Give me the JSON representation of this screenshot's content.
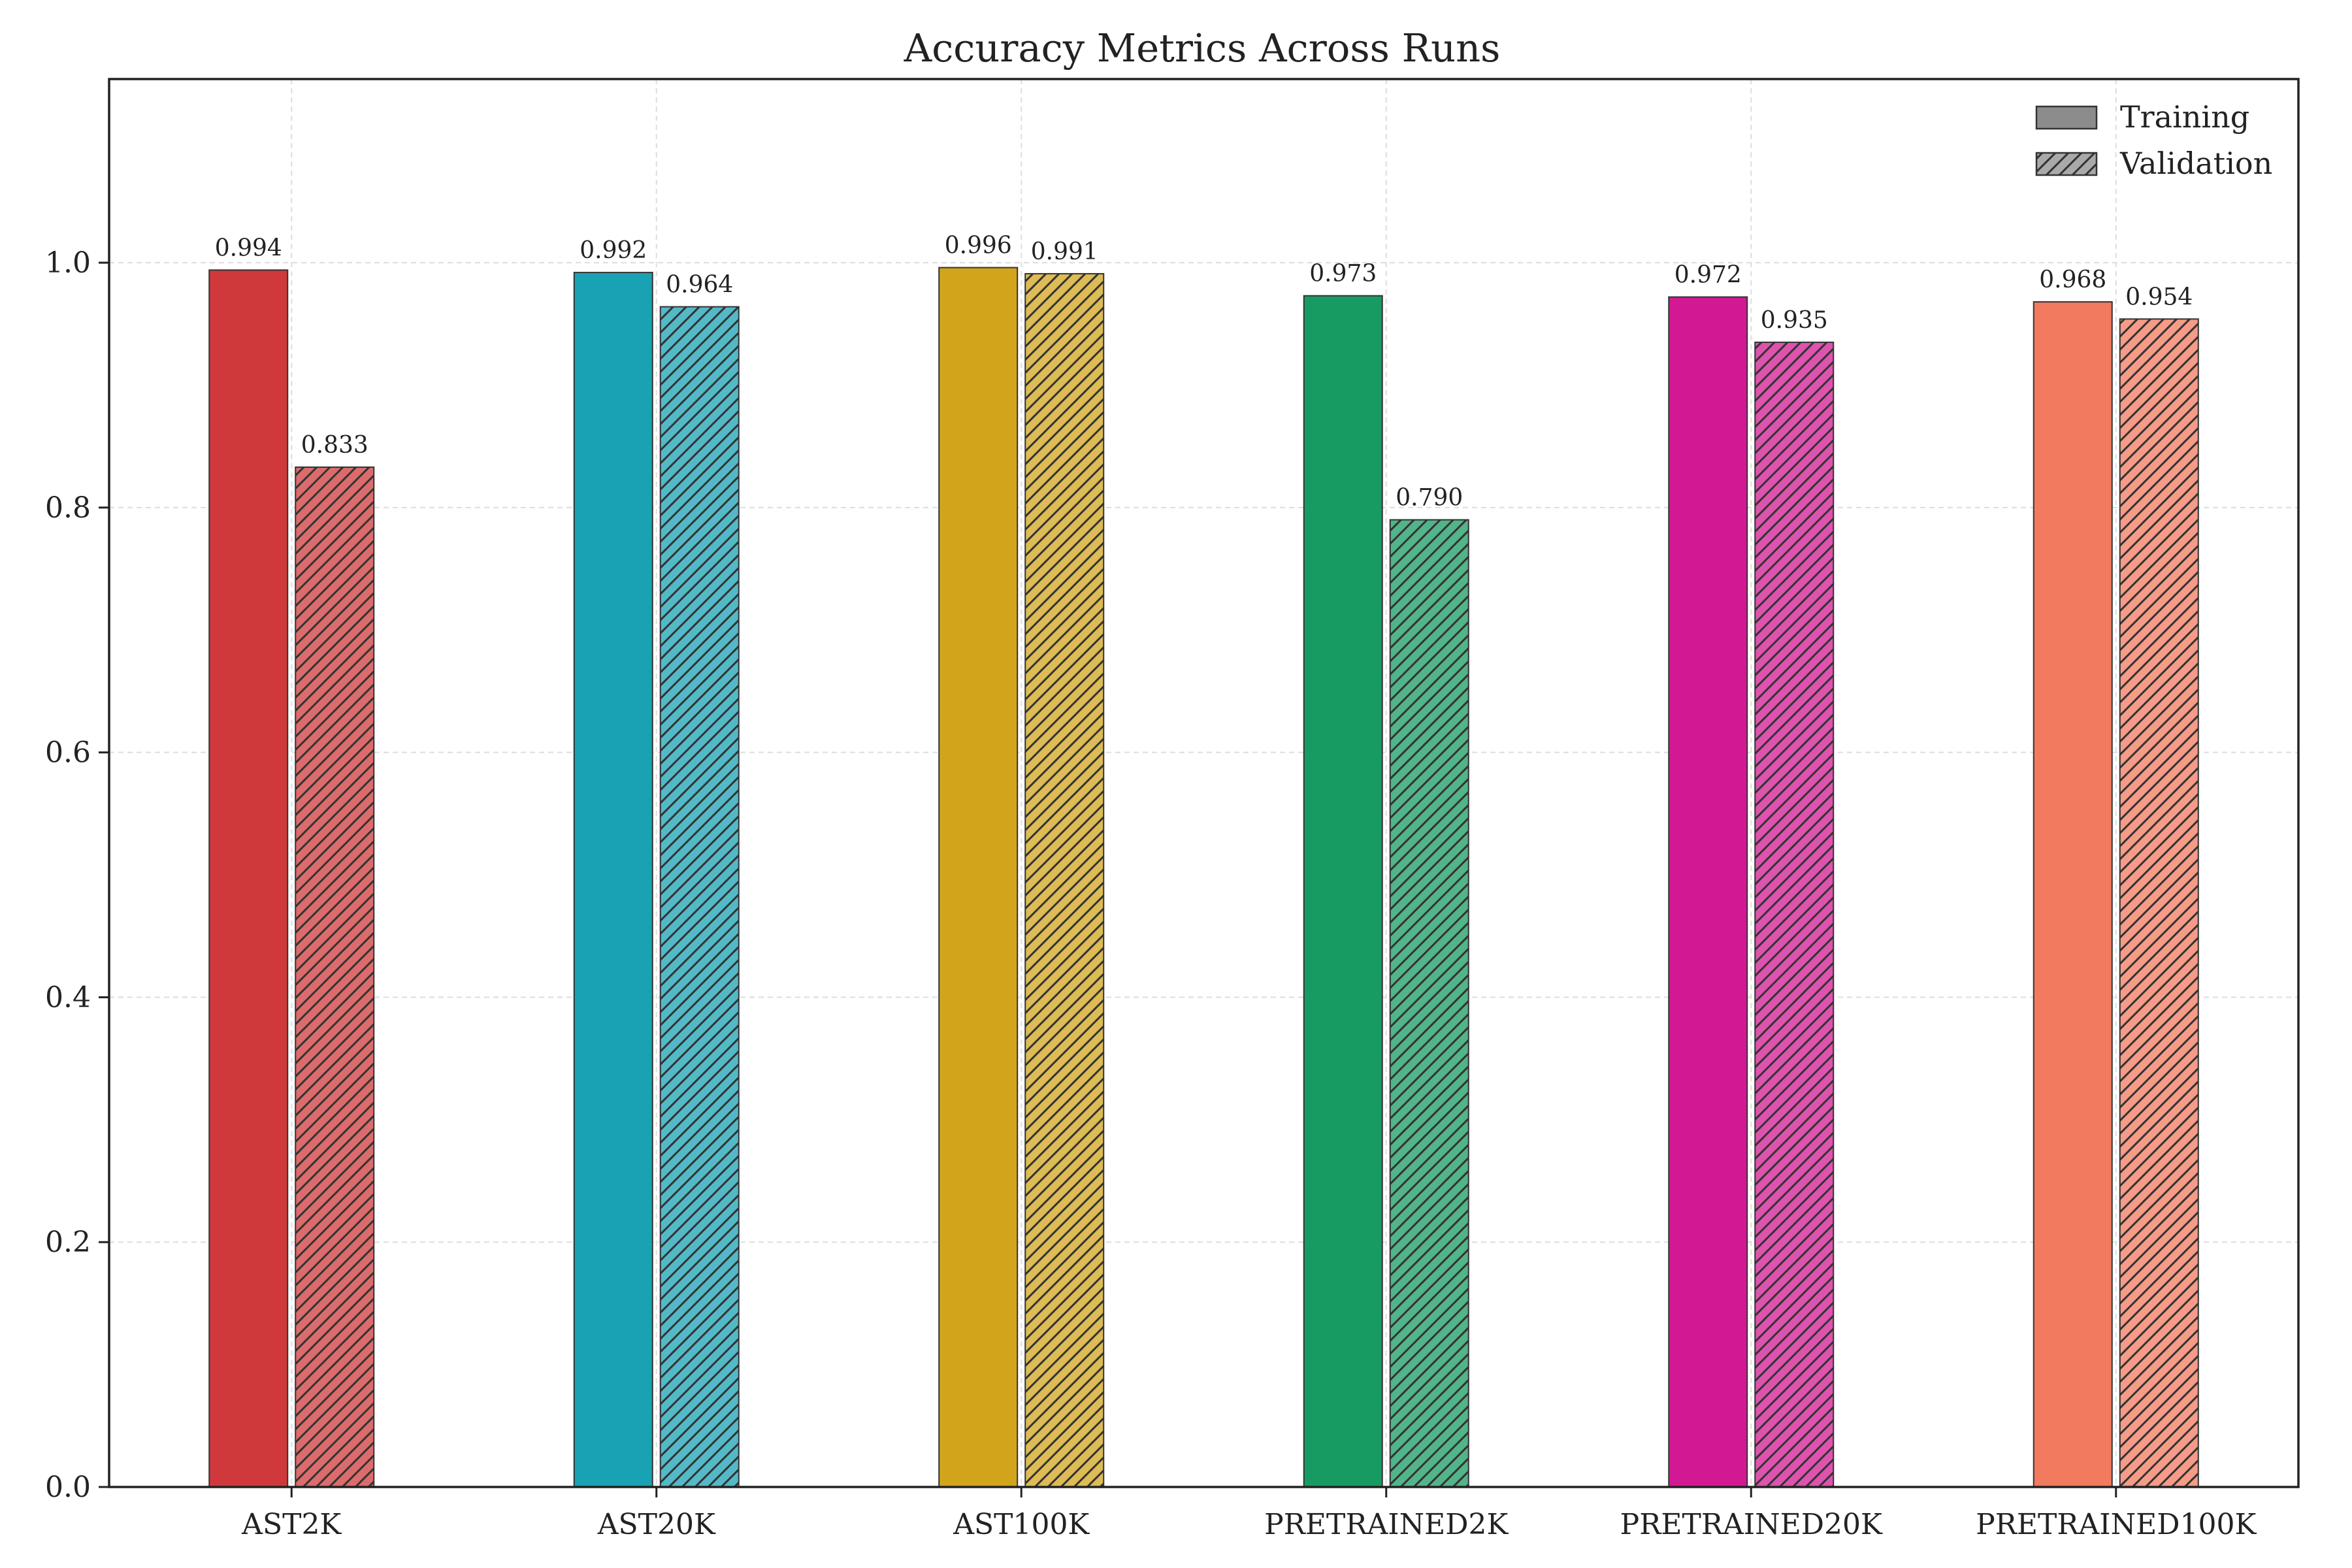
{
  "chart_data": {
    "type": "bar",
    "title": "Accuracy Metrics Across Runs",
    "xlabel": "",
    "ylabel": "",
    "categories": [
      "AST2K",
      "AST20K",
      "AST100K",
      "PRETRAINED2K",
      "PRETRAINED20K",
      "PRETRAINED100K"
    ],
    "series": [
      {
        "name": "Training",
        "values": [
          0.994,
          0.992,
          0.996,
          0.973,
          0.972,
          0.968
        ],
        "hatched": false
      },
      {
        "name": "Validation",
        "values": [
          0.833,
          0.964,
          0.991,
          0.79,
          0.935,
          0.954
        ],
        "hatched": true
      }
    ],
    "data_labels": {
      "Training": [
        "0.994",
        "0.992",
        "0.996",
        "0.973",
        "0.972",
        "0.968"
      ],
      "Validation": [
        "0.833",
        "0.964",
        "0.991",
        "0.790",
        "0.935",
        "0.954"
      ]
    },
    "category_colors": [
      "#d0393b",
      "#19a2b4",
      "#d1a41c",
      "#189b62",
      "#d21993",
      "#f17a5f"
    ],
    "ylim": [
      0,
      1.15
    ],
    "yticks": [
      0.0,
      0.2,
      0.4,
      0.6,
      0.8,
      1.0
    ],
    "ytick_labels": [
      "0.0",
      "0.2",
      "0.4",
      "0.6",
      "0.8",
      "1.0"
    ],
    "grid": true,
    "legend_position": "top-right",
    "legend_swatch_color": "#8c8c8c"
  }
}
